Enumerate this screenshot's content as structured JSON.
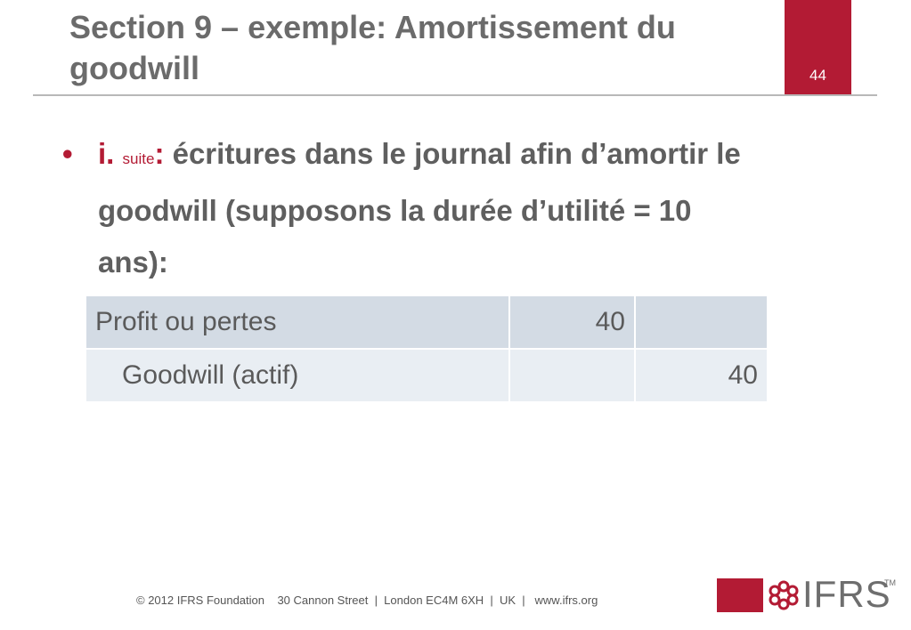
{
  "slide": {
    "title": "Section 9 – exemple: Amortissement du goodwill",
    "page_number": "44"
  },
  "bullet": {
    "label_i": "i.",
    "label_suite": "suite",
    "colon": ":",
    "text": " écritures dans le journal afin d’amortir le goodwill (supposons  la durée d’utilité  = 10 ans):"
  },
  "journal": {
    "rows": [
      {
        "account": "Profit ou pertes",
        "debit": "40",
        "credit": ""
      },
      {
        "account": "Goodwill (actif)",
        "debit": "",
        "credit": "40"
      }
    ]
  },
  "footer": {
    "text": "© 2012 IFRS Foundation    30 Cannon Street  |  London EC4M 6XH  |  UK  |   www.ifrs.org"
  },
  "logo": {
    "text": "IFRS",
    "tm": "TM",
    "icon": "ifrs-flower-icon",
    "color": "#b31b34"
  },
  "colors": {
    "accent": "#b31b34",
    "row1": "#d3dbe4",
    "row2": "#e9eef3"
  }
}
